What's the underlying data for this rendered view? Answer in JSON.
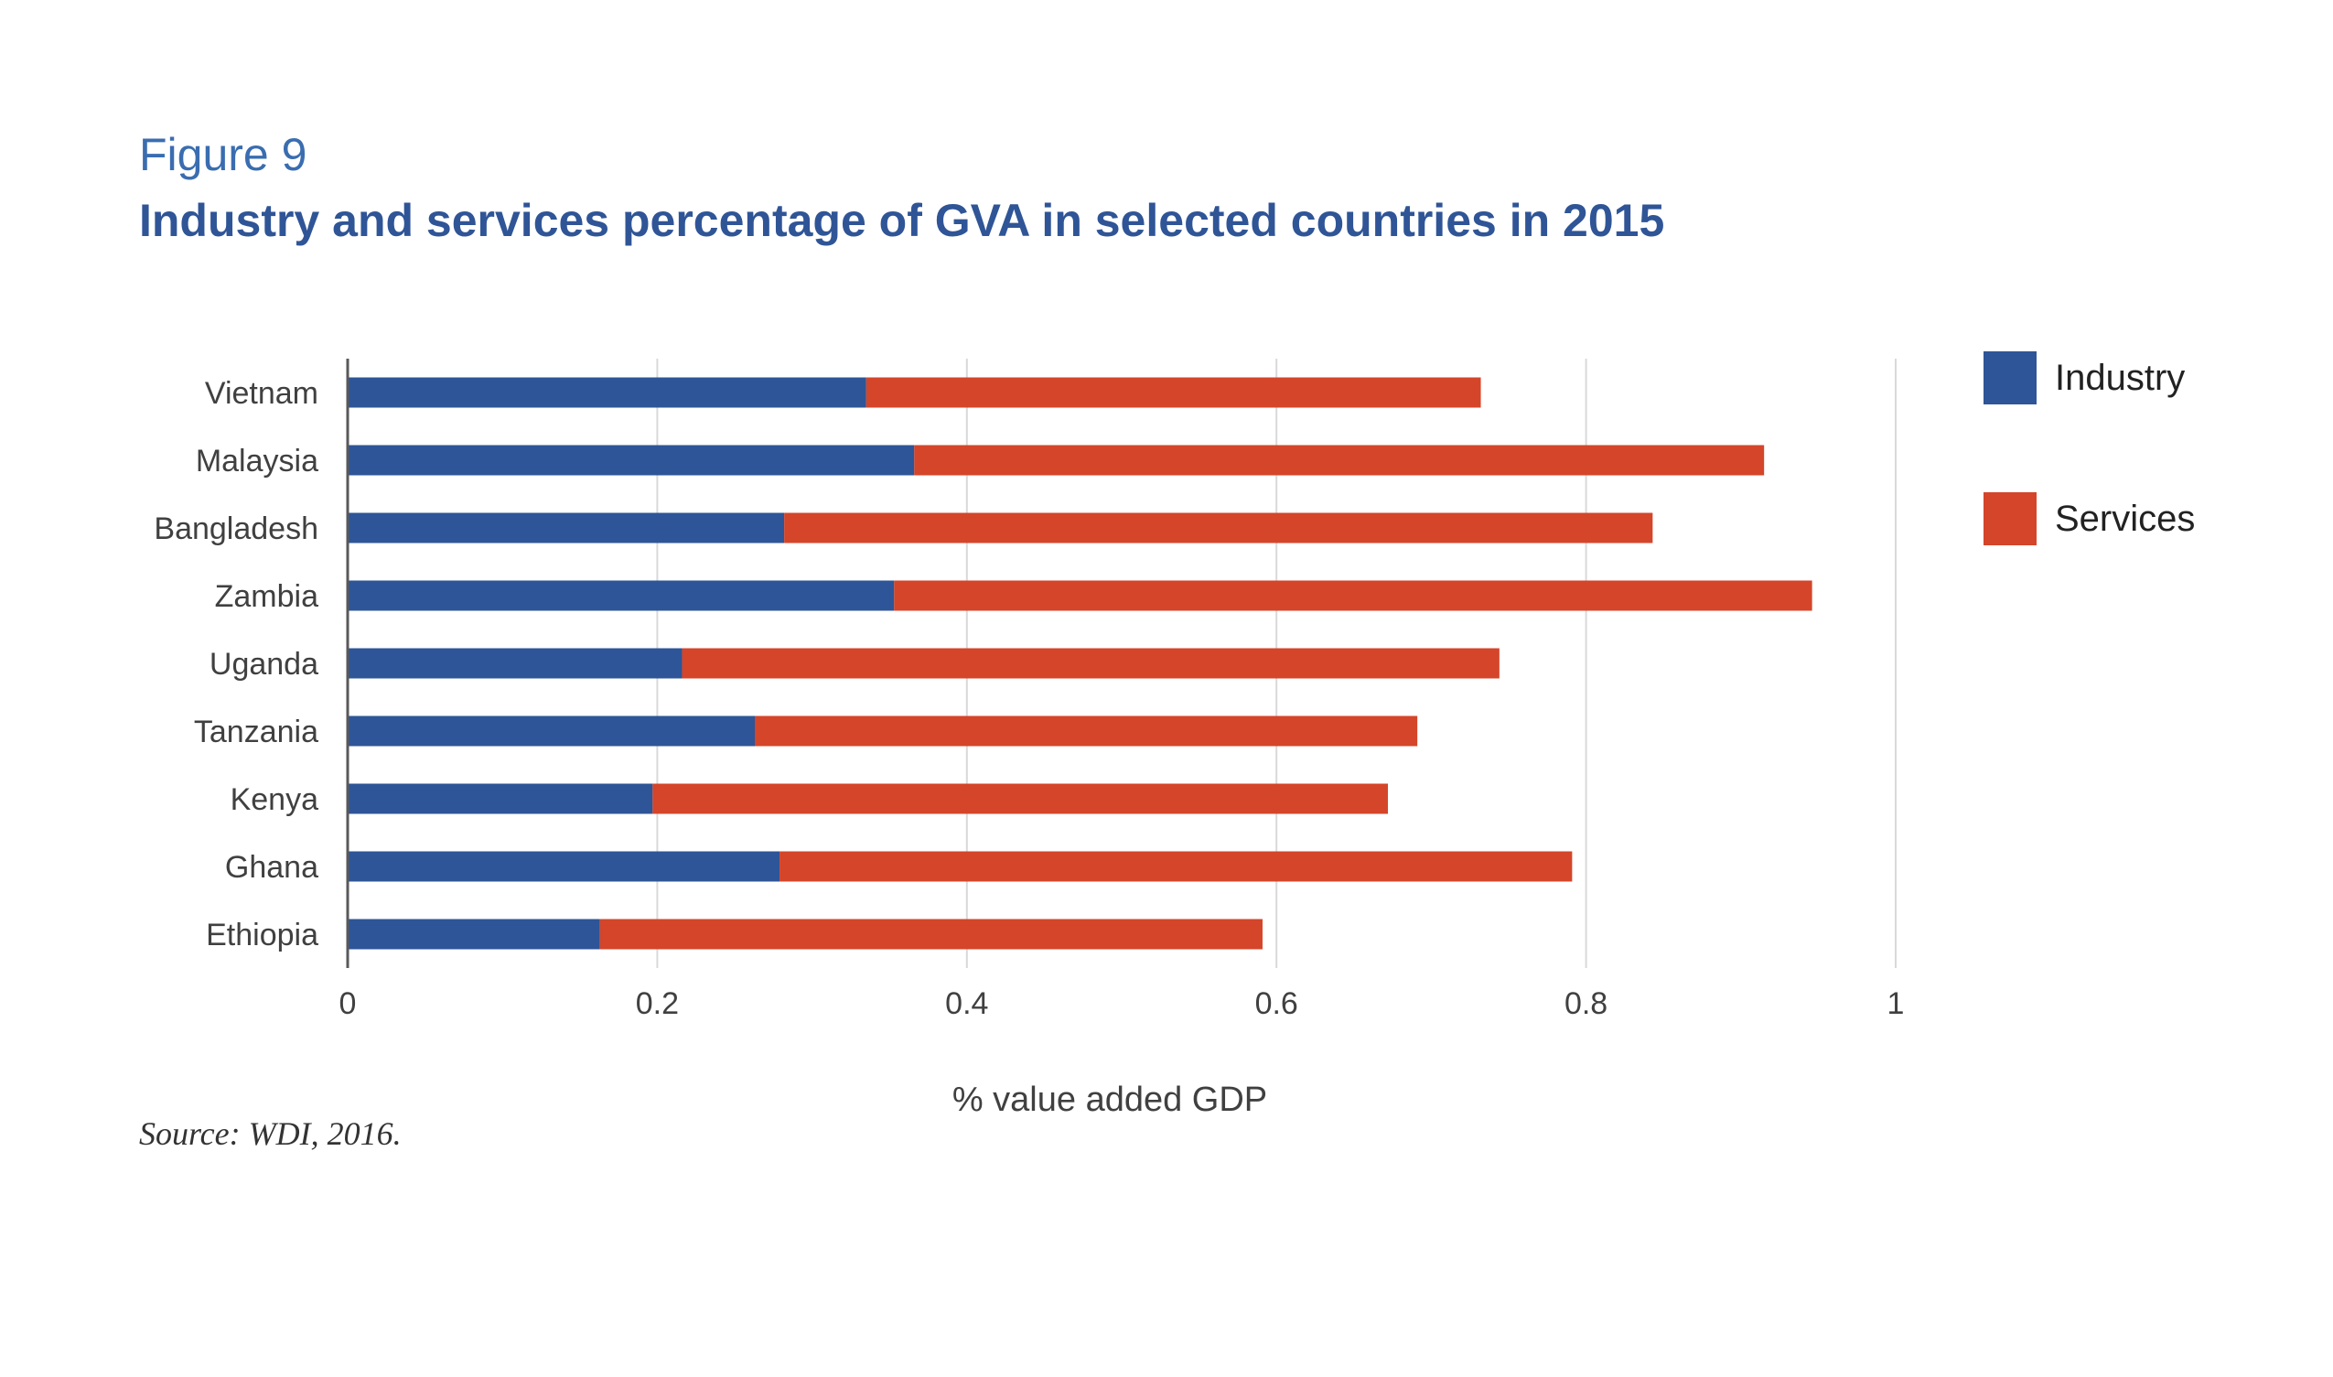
{
  "header": {
    "figure_label": "Figure 9",
    "title": "Industry and services percentage of GVA in selected countries in 2015"
  },
  "source": "Source: WDI, 2016.",
  "colors": {
    "industry": "#2e5597",
    "services": "#d4452a",
    "grid": "#d9d9d9",
    "axis": "#595959",
    "text": "#404040"
  },
  "chart_data": {
    "type": "bar",
    "orientation": "horizontal",
    "stacked": true,
    "categories": [
      "Vietnam",
      "Malaysia",
      "Bangladesh",
      "Zambia",
      "Uganda",
      "Tanzania",
      "Kenya",
      "Ghana",
      "Ethiopia"
    ],
    "series": [
      {
        "name": "Industry",
        "values": [
          0.335,
          0.366,
          0.282,
          0.353,
          0.216,
          0.263,
          0.197,
          0.279,
          0.163
        ]
      },
      {
        "name": "Services",
        "values": [
          0.397,
          0.549,
          0.561,
          0.593,
          0.528,
          0.428,
          0.475,
          0.512,
          0.428
        ]
      }
    ],
    "xlabel": "% value added GDP",
    "ylabel": "",
    "xlim": [
      0,
      1
    ],
    "xticks": [
      "0",
      "0.2",
      "0.4",
      "0.6",
      "0.8",
      "1"
    ],
    "grid": true,
    "legend_position": "right"
  }
}
